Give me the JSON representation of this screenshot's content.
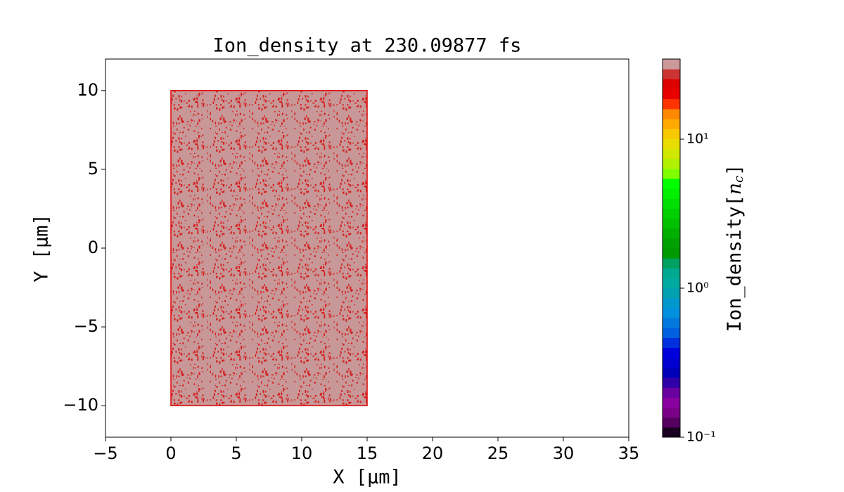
{
  "chart_data": {
    "type": "field",
    "title": "Ion_density at 230.09877 fs",
    "xlabel": "X [μm]",
    "ylabel": "Y [μm]",
    "xlim": [
      -5,
      35
    ],
    "ylim": [
      -12,
      12
    ],
    "xticks": [
      {
        "value": -5,
        "label": "−5"
      },
      0,
      5,
      10,
      15,
      20,
      25,
      30,
      35
    ],
    "yticks": [
      {
        "value": -10,
        "label": "−10"
      },
      {
        "value": -5,
        "label": "−5"
      },
      0,
      5,
      10
    ],
    "regions": [
      {
        "x": [
          0,
          15
        ],
        "y": [
          -10,
          10
        ],
        "value": 34,
        "color": "#c89898",
        "speckle_color": "#d42020",
        "edge_color": "#dd0000"
      }
    ],
    "colorbar": {
      "label": [
        "Ion_density[",
        "n",
        "c",
        "]"
      ],
      "scale": "log",
      "clim": [
        0.1,
        34.5
      ],
      "ticks": [
        {
          "value": 0.1,
          "label": "10⁻¹"
        },
        {
          "value": 1,
          "label": "10⁰"
        },
        {
          "value": 10,
          "label": "10¹"
        }
      ],
      "colors": [
        "#1a0020",
        "#550060",
        "#7a0088",
        "#8800a0",
        "#6a00a0",
        "#3000a8",
        "#0000b8",
        "#0000d0",
        "#0000dd",
        "#0030dd",
        "#0060dd",
        "#0078dd",
        "#0090dd",
        "#0098cc",
        "#00a0b0",
        "#00aaa0",
        "#00aa90",
        "#00a060",
        "#009900",
        "#00a000",
        "#00b000",
        "#00c000",
        "#00d000",
        "#00e000",
        "#00f000",
        "#00ff00",
        "#80ff00",
        "#b0f000",
        "#d0e800",
        "#e8dc00",
        "#f8c800",
        "#ffaa00",
        "#ff8800",
        "#ff3300",
        "#e80000",
        "#dd0000",
        "#cc3333",
        "#cc9999"
      ]
    }
  }
}
